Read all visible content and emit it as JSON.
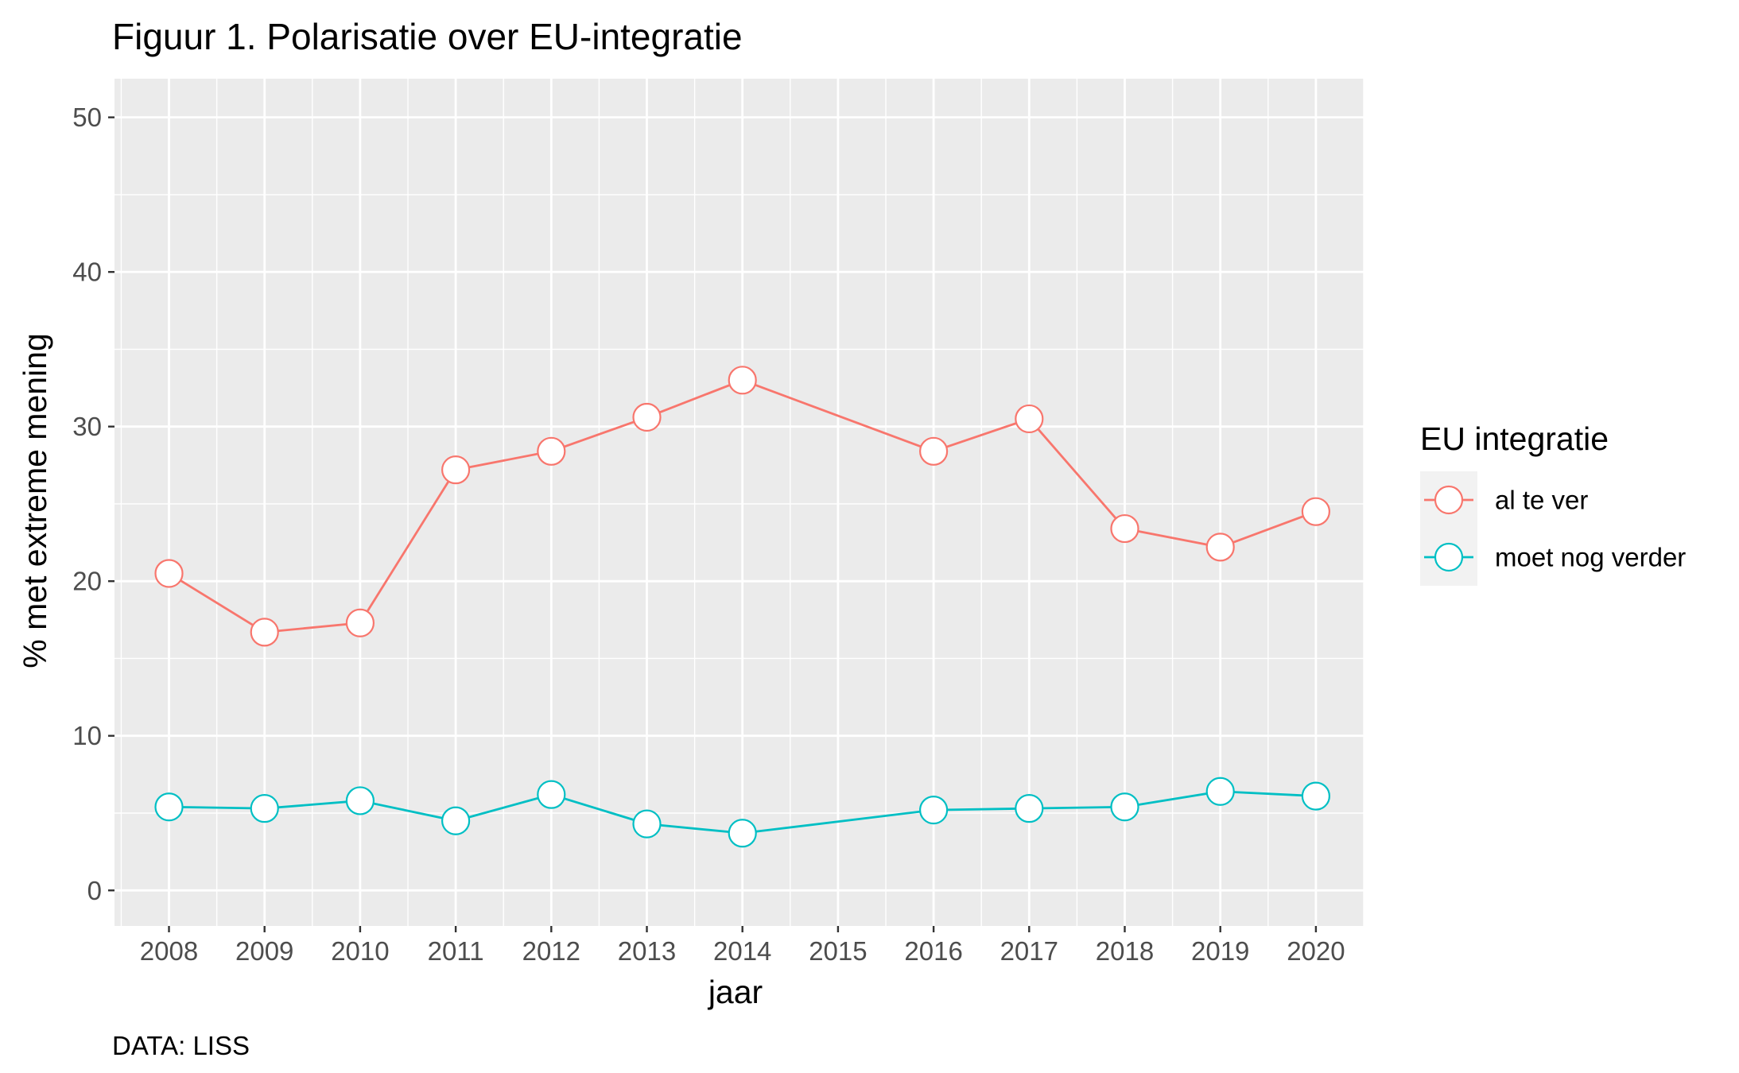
{
  "chart_data": {
    "type": "line",
    "title": "Figuur 1. Polarisatie over EU-integratie",
    "xlabel": "jaar",
    "ylabel": "% met extreme mening",
    "caption": "DATA: LISS",
    "x_ticks": [
      "2008",
      "2009",
      "2010",
      "2011",
      "2012",
      "2013",
      "2014",
      "2015",
      "2016",
      "2017",
      "2018",
      "2019",
      "2020"
    ],
    "y_ticks": [
      0,
      10,
      20,
      30,
      40,
      50
    ],
    "ylim": [
      -2.3,
      52.5
    ],
    "xlim": [
      2007.43,
      2020.5
    ],
    "grid": true,
    "legend": {
      "title": "EU integratie",
      "position": "right"
    },
    "series": [
      {
        "name": "al te ver",
        "color": "#F8766D",
        "x": [
          2008,
          2009,
          2010,
          2011,
          2012,
          2013,
          2014,
          2016,
          2017,
          2018,
          2019,
          2020
        ],
        "values": [
          20.5,
          16.7,
          17.3,
          27.2,
          28.4,
          30.6,
          33.0,
          28.4,
          30.5,
          23.4,
          22.2,
          24.5
        ]
      },
      {
        "name": "moet nog verder",
        "color": "#00BFC4",
        "x": [
          2008,
          2009,
          2010,
          2011,
          2012,
          2013,
          2014,
          2016,
          2017,
          2018,
          2019,
          2020
        ],
        "values": [
          5.4,
          5.3,
          5.8,
          4.5,
          6.2,
          4.3,
          3.7,
          5.2,
          5.3,
          5.4,
          6.4,
          6.1
        ]
      }
    ]
  },
  "colors": {
    "panel_background": "#EBEBEB",
    "grid": "#FFFFFF",
    "point_fill": "#FFFFFF"
  }
}
